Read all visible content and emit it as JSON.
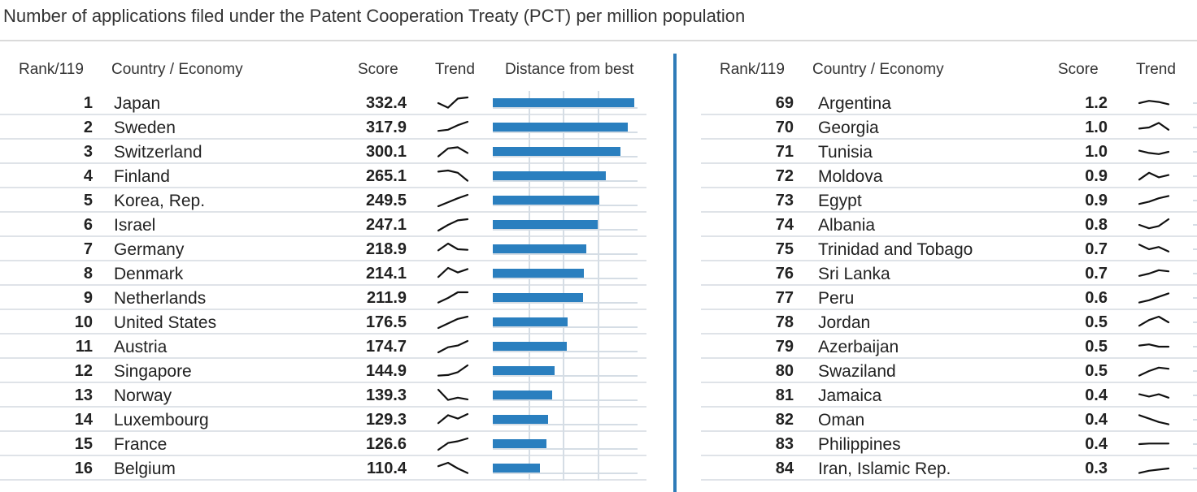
{
  "title": "Number of applications filed under the Patent Cooperation Treaty (PCT) per million population",
  "colors": {
    "bar": "#2a7fbf",
    "divider": "#2e7bb8",
    "grid": "#d5dde5"
  },
  "left_headers": {
    "rank": "Rank/119",
    "country": "Country / Economy",
    "score": "Score",
    "trend": "Trend",
    "distance": "Distance from best"
  },
  "right_headers": {
    "rank": "Rank/119",
    "country": "Country / Economy",
    "score": "Score",
    "trend": "Trend"
  },
  "chart_data": {
    "type": "table",
    "best_score": 332.4,
    "left_rows": [
      {
        "rank": "1",
        "country": "Japan",
        "score": "332.4",
        "value": 332.4,
        "trend": [
          0.5,
          0.1,
          0.9,
          1.0
        ]
      },
      {
        "rank": "2",
        "country": "Sweden",
        "score": "317.9",
        "value": 317.9,
        "trend": [
          0.2,
          0.3,
          0.7,
          1.0
        ]
      },
      {
        "rank": "3",
        "country": "Switzerland",
        "score": "300.1",
        "value": 300.1,
        "trend": [
          0.1,
          0.8,
          0.9,
          0.4
        ]
      },
      {
        "rank": "4",
        "country": "Finland",
        "score": "265.1",
        "value": 265.1,
        "trend": [
          0.9,
          1.0,
          0.8,
          0.1
        ]
      },
      {
        "rank": "5",
        "country": "Korea, Rep.",
        "score": "249.5",
        "value": 249.5,
        "trend": [
          0.0,
          0.35,
          0.7,
          1.0
        ]
      },
      {
        "rank": "6",
        "country": "Israel",
        "score": "247.1",
        "value": 247.1,
        "trend": [
          0.0,
          0.5,
          0.9,
          1.0
        ]
      },
      {
        "rank": "7",
        "country": "Germany",
        "score": "218.9",
        "value": 218.9,
        "trend": [
          0.4,
          1.0,
          0.5,
          0.45
        ]
      },
      {
        "rank": "8",
        "country": "Denmark",
        "score": "214.1",
        "value": 214.1,
        "trend": [
          0.2,
          1.0,
          0.6,
          0.9
        ]
      },
      {
        "rank": "9",
        "country": "Netherlands",
        "score": "211.9",
        "value": 211.9,
        "trend": [
          0.1,
          0.5,
          1.0,
          1.0
        ]
      },
      {
        "rank": "10",
        "country": "United States",
        "score": "176.5",
        "value": 176.5,
        "trend": [
          0.0,
          0.4,
          0.8,
          1.0
        ]
      },
      {
        "rank": "11",
        "country": "Austria",
        "score": "174.7",
        "value": 174.7,
        "trend": [
          0.0,
          0.45,
          0.6,
          1.0
        ]
      },
      {
        "rank": "12",
        "country": "Singapore",
        "score": "144.9",
        "value": 144.9,
        "trend": [
          0.1,
          0.15,
          0.4,
          1.0
        ]
      },
      {
        "rank": "13",
        "country": "Norway",
        "score": "139.3",
        "value": 139.3,
        "trend": [
          1.0,
          0.1,
          0.3,
          0.15
        ]
      },
      {
        "rank": "14",
        "country": "Luxembourg",
        "score": "129.3",
        "value": 129.3,
        "trend": [
          0.2,
          0.9,
          0.6,
          1.0
        ]
      },
      {
        "rank": "15",
        "country": "France",
        "score": "126.6",
        "value": 126.6,
        "trend": [
          0.0,
          0.6,
          0.75,
          1.0
        ]
      },
      {
        "rank": "16",
        "country": "Belgium",
        "score": "110.4",
        "value": 110.4,
        "trend": [
          0.7,
          1.0,
          0.5,
          0.1
        ]
      }
    ],
    "right_rows": [
      {
        "rank": "69",
        "country": "Argentina",
        "score": "1.2",
        "value": 1.2,
        "trend": [
          0.5,
          0.7,
          0.6,
          0.4
        ]
      },
      {
        "rank": "70",
        "country": "Georgia",
        "score": "1.0",
        "value": 1.0,
        "trend": [
          0.4,
          0.5,
          0.9,
          0.3
        ]
      },
      {
        "rank": "71",
        "country": "Tunisia",
        "score": "1.0",
        "value": 1.0,
        "trend": [
          0.6,
          0.4,
          0.3,
          0.5
        ]
      },
      {
        "rank": "72",
        "country": "Moldova",
        "score": "0.9",
        "value": 0.9,
        "trend": [
          0.2,
          0.8,
          0.4,
          0.6
        ]
      },
      {
        "rank": "73",
        "country": "Egypt",
        "score": "0.9",
        "value": 0.9,
        "trend": [
          0.2,
          0.4,
          0.7,
          0.9
        ]
      },
      {
        "rank": "74",
        "country": "Albania",
        "score": "0.8",
        "value": 0.8,
        "trend": [
          0.5,
          0.2,
          0.4,
          1.0
        ]
      },
      {
        "rank": "75",
        "country": "Trinidad and Tobago",
        "score": "0.7",
        "value": 0.7,
        "trend": [
          0.9,
          0.5,
          0.7,
          0.3
        ]
      },
      {
        "rank": "76",
        "country": "Sri Lanka",
        "score": "0.7",
        "value": 0.7,
        "trend": [
          0.3,
          0.5,
          0.8,
          0.7
        ]
      },
      {
        "rank": "77",
        "country": "Peru",
        "score": "0.6",
        "value": 0.6,
        "trend": [
          0.1,
          0.3,
          0.6,
          0.9
        ]
      },
      {
        "rank": "78",
        "country": "Jordan",
        "score": "0.5",
        "value": 0.5,
        "trend": [
          0.2,
          0.7,
          1.0,
          0.5
        ]
      },
      {
        "rank": "79",
        "country": "Azerbaijan",
        "score": "0.5",
        "value": 0.5,
        "trend": [
          0.6,
          0.7,
          0.5,
          0.5
        ]
      },
      {
        "rank": "80",
        "country": "Swaziland",
        "score": "0.5",
        "value": 0.5,
        "trend": [
          0.1,
          0.5,
          0.8,
          0.7
        ]
      },
      {
        "rank": "81",
        "country": "Jamaica",
        "score": "0.4",
        "value": 0.4,
        "trend": [
          0.6,
          0.4,
          0.6,
          0.3
        ]
      },
      {
        "rank": "82",
        "country": "Oman",
        "score": "0.4",
        "value": 0.4,
        "trend": [
          0.9,
          0.6,
          0.3,
          0.1
        ]
      },
      {
        "rank": "83",
        "country": "Philippines",
        "score": "0.4",
        "value": 0.4,
        "trend": [
          0.5,
          0.55,
          0.55,
          0.55
        ]
      },
      {
        "rank": "84",
        "country": "Iran, Islamic Rep.",
        "score": "0.3",
        "value": 0.3,
        "trend": [
          0.1,
          0.3,
          0.4,
          0.5
        ]
      }
    ]
  }
}
